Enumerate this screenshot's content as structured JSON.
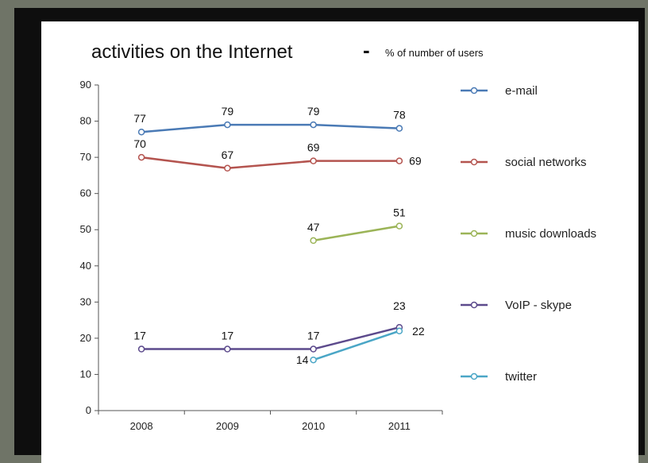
{
  "chart_data": {
    "type": "line",
    "title": "activities on the Internet",
    "title_dash": "-",
    "subtitle": "% of number of users",
    "categories": [
      "2008",
      "2009",
      "2010",
      "2011"
    ],
    "ylim": [
      0,
      90
    ],
    "yticks": [
      0,
      10,
      20,
      30,
      40,
      50,
      60,
      70,
      80,
      90
    ],
    "grid": false,
    "legend_position": "right",
    "series": [
      {
        "name": "e-mail",
        "color": "#4a7ab5",
        "values": [
          77,
          79,
          79,
          78
        ],
        "labels": [
          "77",
          "79",
          "79",
          "78"
        ]
      },
      {
        "name": "social networks",
        "color": "#b4544f",
        "values": [
          70,
          67,
          69,
          69
        ],
        "labels": [
          "70",
          "67",
          "69",
          "69"
        ]
      },
      {
        "name": "music downloads",
        "color": "#9bb457",
        "values": [
          null,
          null,
          47,
          51
        ],
        "labels": [
          null,
          null,
          "47",
          "51"
        ]
      },
      {
        "name": "VoIP - skype",
        "color": "#5c4a8c",
        "values": [
          17,
          17,
          17,
          23
        ],
        "labels": [
          "17",
          "17",
          "17",
          "23"
        ]
      },
      {
        "name": "twitter",
        "color": "#4aa6c6",
        "values": [
          null,
          null,
          14,
          22
        ],
        "labels": [
          null,
          null,
          "14",
          "22"
        ]
      }
    ]
  }
}
